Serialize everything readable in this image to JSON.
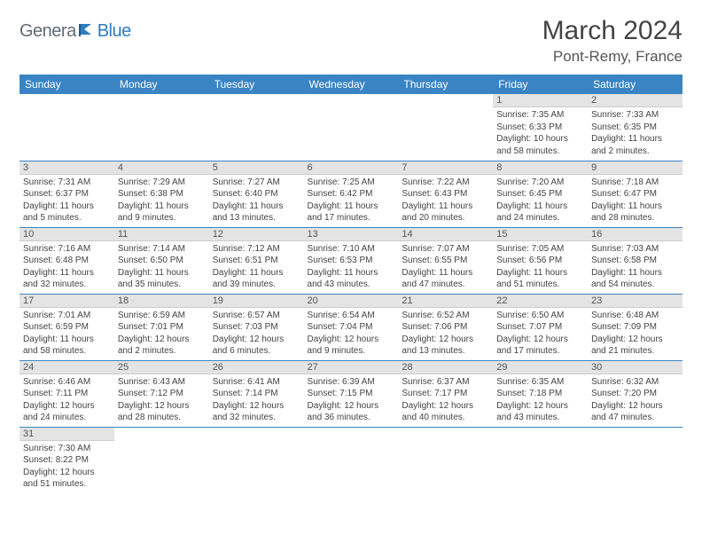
{
  "logo": {
    "part1": "Genera",
    "part2": "Blue"
  },
  "title": "March 2024",
  "location": "Pont-Remy, France",
  "colors": {
    "header_bg": "#3a84c4",
    "header_text": "#ffffff",
    "daynum_bg": "#e4e4e4",
    "cell_border": "#3a84c4",
    "logo_gray": "#5f6b76",
    "logo_blue": "#2f7bbf"
  },
  "daysOfWeek": [
    "Sunday",
    "Monday",
    "Tuesday",
    "Wednesday",
    "Thursday",
    "Friday",
    "Saturday"
  ],
  "weeks": [
    [
      null,
      null,
      null,
      null,
      null,
      {
        "n": "1",
        "sr": "Sunrise: 7:35 AM",
        "ss": "Sunset: 6:33 PM",
        "dl": "Daylight: 10 hours and 58 minutes."
      },
      {
        "n": "2",
        "sr": "Sunrise: 7:33 AM",
        "ss": "Sunset: 6:35 PM",
        "dl": "Daylight: 11 hours and 2 minutes."
      }
    ],
    [
      {
        "n": "3",
        "sr": "Sunrise: 7:31 AM",
        "ss": "Sunset: 6:37 PM",
        "dl": "Daylight: 11 hours and 5 minutes."
      },
      {
        "n": "4",
        "sr": "Sunrise: 7:29 AM",
        "ss": "Sunset: 6:38 PM",
        "dl": "Daylight: 11 hours and 9 minutes."
      },
      {
        "n": "5",
        "sr": "Sunrise: 7:27 AM",
        "ss": "Sunset: 6:40 PM",
        "dl": "Daylight: 11 hours and 13 minutes."
      },
      {
        "n": "6",
        "sr": "Sunrise: 7:25 AM",
        "ss": "Sunset: 6:42 PM",
        "dl": "Daylight: 11 hours and 17 minutes."
      },
      {
        "n": "7",
        "sr": "Sunrise: 7:22 AM",
        "ss": "Sunset: 6:43 PM",
        "dl": "Daylight: 11 hours and 20 minutes."
      },
      {
        "n": "8",
        "sr": "Sunrise: 7:20 AM",
        "ss": "Sunset: 6:45 PM",
        "dl": "Daylight: 11 hours and 24 minutes."
      },
      {
        "n": "9",
        "sr": "Sunrise: 7:18 AM",
        "ss": "Sunset: 6:47 PM",
        "dl": "Daylight: 11 hours and 28 minutes."
      }
    ],
    [
      {
        "n": "10",
        "sr": "Sunrise: 7:16 AM",
        "ss": "Sunset: 6:48 PM",
        "dl": "Daylight: 11 hours and 32 minutes."
      },
      {
        "n": "11",
        "sr": "Sunrise: 7:14 AM",
        "ss": "Sunset: 6:50 PM",
        "dl": "Daylight: 11 hours and 35 minutes."
      },
      {
        "n": "12",
        "sr": "Sunrise: 7:12 AM",
        "ss": "Sunset: 6:51 PM",
        "dl": "Daylight: 11 hours and 39 minutes."
      },
      {
        "n": "13",
        "sr": "Sunrise: 7:10 AM",
        "ss": "Sunset: 6:53 PM",
        "dl": "Daylight: 11 hours and 43 minutes."
      },
      {
        "n": "14",
        "sr": "Sunrise: 7:07 AM",
        "ss": "Sunset: 6:55 PM",
        "dl": "Daylight: 11 hours and 47 minutes."
      },
      {
        "n": "15",
        "sr": "Sunrise: 7:05 AM",
        "ss": "Sunset: 6:56 PM",
        "dl": "Daylight: 11 hours and 51 minutes."
      },
      {
        "n": "16",
        "sr": "Sunrise: 7:03 AM",
        "ss": "Sunset: 6:58 PM",
        "dl": "Daylight: 11 hours and 54 minutes."
      }
    ],
    [
      {
        "n": "17",
        "sr": "Sunrise: 7:01 AM",
        "ss": "Sunset: 6:59 PM",
        "dl": "Daylight: 11 hours and 58 minutes."
      },
      {
        "n": "18",
        "sr": "Sunrise: 6:59 AM",
        "ss": "Sunset: 7:01 PM",
        "dl": "Daylight: 12 hours and 2 minutes."
      },
      {
        "n": "19",
        "sr": "Sunrise: 6:57 AM",
        "ss": "Sunset: 7:03 PM",
        "dl": "Daylight: 12 hours and 6 minutes."
      },
      {
        "n": "20",
        "sr": "Sunrise: 6:54 AM",
        "ss": "Sunset: 7:04 PM",
        "dl": "Daylight: 12 hours and 9 minutes."
      },
      {
        "n": "21",
        "sr": "Sunrise: 6:52 AM",
        "ss": "Sunset: 7:06 PM",
        "dl": "Daylight: 12 hours and 13 minutes."
      },
      {
        "n": "22",
        "sr": "Sunrise: 6:50 AM",
        "ss": "Sunset: 7:07 PM",
        "dl": "Daylight: 12 hours and 17 minutes."
      },
      {
        "n": "23",
        "sr": "Sunrise: 6:48 AM",
        "ss": "Sunset: 7:09 PM",
        "dl": "Daylight: 12 hours and 21 minutes."
      }
    ],
    [
      {
        "n": "24",
        "sr": "Sunrise: 6:46 AM",
        "ss": "Sunset: 7:11 PM",
        "dl": "Daylight: 12 hours and 24 minutes."
      },
      {
        "n": "25",
        "sr": "Sunrise: 6:43 AM",
        "ss": "Sunset: 7:12 PM",
        "dl": "Daylight: 12 hours and 28 minutes."
      },
      {
        "n": "26",
        "sr": "Sunrise: 6:41 AM",
        "ss": "Sunset: 7:14 PM",
        "dl": "Daylight: 12 hours and 32 minutes."
      },
      {
        "n": "27",
        "sr": "Sunrise: 6:39 AM",
        "ss": "Sunset: 7:15 PM",
        "dl": "Daylight: 12 hours and 36 minutes."
      },
      {
        "n": "28",
        "sr": "Sunrise: 6:37 AM",
        "ss": "Sunset: 7:17 PM",
        "dl": "Daylight: 12 hours and 40 minutes."
      },
      {
        "n": "29",
        "sr": "Sunrise: 6:35 AM",
        "ss": "Sunset: 7:18 PM",
        "dl": "Daylight: 12 hours and 43 minutes."
      },
      {
        "n": "30",
        "sr": "Sunrise: 6:32 AM",
        "ss": "Sunset: 7:20 PM",
        "dl": "Daylight: 12 hours and 47 minutes."
      }
    ],
    [
      {
        "n": "31",
        "sr": "Sunrise: 7:30 AM",
        "ss": "Sunset: 8:22 PM",
        "dl": "Daylight: 12 hours and 51 minutes."
      },
      null,
      null,
      null,
      null,
      null,
      null
    ]
  ]
}
